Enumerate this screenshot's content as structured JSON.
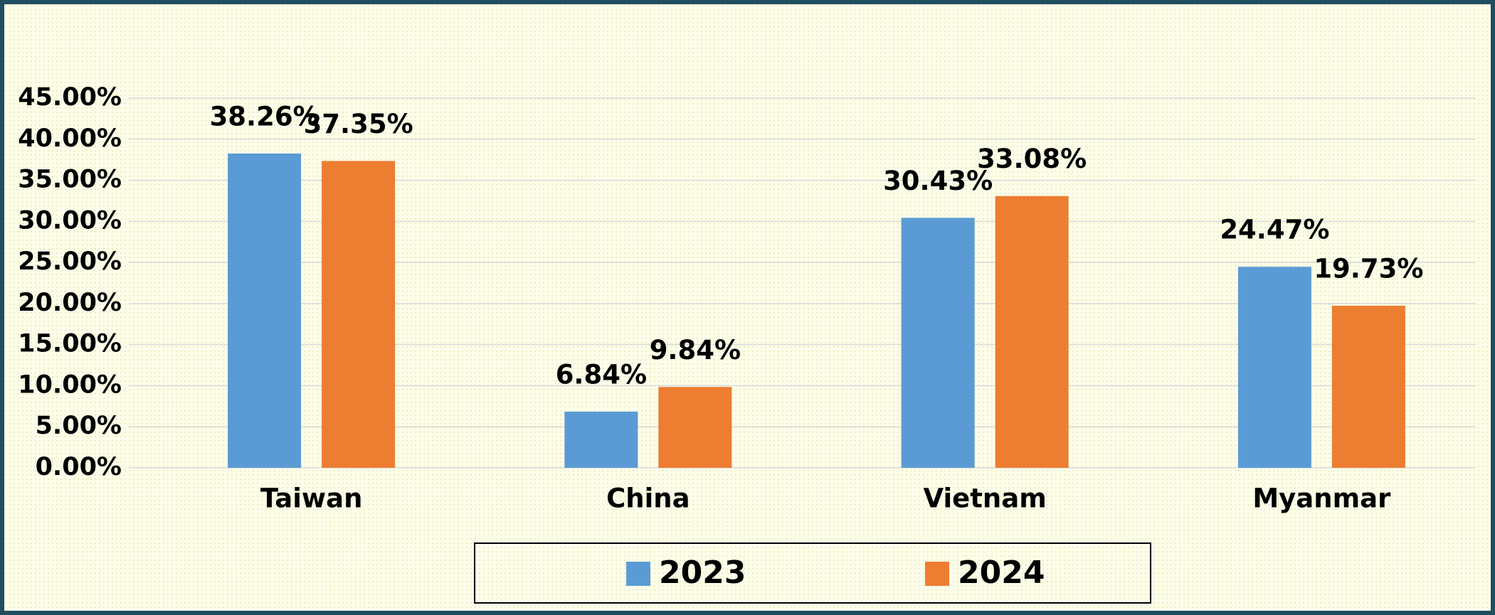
{
  "chart_data": {
    "type": "bar",
    "categories": [
      "Taiwan",
      "China",
      "Vietnam",
      "Myanmar"
    ],
    "series": [
      {
        "name": "2023",
        "color": "#5b9bd5",
        "values": [
          38.26,
          6.84,
          30.43,
          24.47
        ],
        "value_labels": [
          "38.26%",
          "6.84%",
          "30.43%",
          "24.47%"
        ]
      },
      {
        "name": "2024",
        "color": "#ed7d31",
        "values": [
          37.35,
          9.84,
          33.08,
          19.73
        ],
        "value_labels": [
          "37.35%",
          "9.84%",
          "33.08%",
          "19.73%"
        ]
      }
    ],
    "ylim": [
      0,
      45
    ],
    "yticks": [
      {
        "value": 0,
        "label": "0.00%"
      },
      {
        "value": 5,
        "label": "5.00%"
      },
      {
        "value": 10,
        "label": "10.00%"
      },
      {
        "value": 15,
        "label": "15.00%"
      },
      {
        "value": 20,
        "label": "20.00%"
      },
      {
        "value": 25,
        "label": "25.00%"
      },
      {
        "value": 30,
        "label": "30.00%"
      },
      {
        "value": 35,
        "label": "35.00%"
      },
      {
        "value": 40,
        "label": "40.00%"
      },
      {
        "value": 45,
        "label": "45.00%"
      }
    ],
    "grid": true,
    "legend": "bottom"
  }
}
